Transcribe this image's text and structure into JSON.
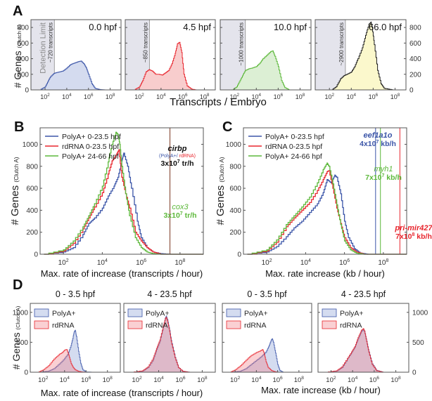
{
  "panel_letters": {
    "A": "A",
    "B": "B",
    "C": "C",
    "D": "D"
  },
  "colors": {
    "blue": "#3b55a8",
    "red": "#e8262e",
    "green": "#5cb83a",
    "black": "#1a1a1a",
    "brown": "#a07060",
    "detect_fill": "#e4e4ec",
    "yellow_fill": "#fbf8cc"
  },
  "chart_data": [
    {
      "id": "A",
      "type": "area",
      "subplots": [
        {
          "label": "0.0 hpf",
          "color": "blue",
          "fill": "#d4dbef",
          "detection_limit": 720,
          "detection_text": "~720 transcripts",
          "extra_text": "Detection Limit",
          "x_log10": [
            1.5,
            2,
            2.3,
            2.5,
            2.8,
            3,
            3.3,
            3.6,
            4,
            4.3,
            4.6,
            5,
            5.3,
            5.6,
            5.8,
            6,
            6.3,
            6.6,
            7,
            7.5
          ],
          "y": [
            0,
            40,
            120,
            170,
            210,
            220,
            230,
            240,
            280,
            320,
            340,
            360,
            370,
            330,
            280,
            200,
            80,
            20,
            5,
            0
          ]
        },
        {
          "label": "4.5 hpf",
          "color": "red",
          "fill": "#f8cdcd",
          "detection_limit": 850,
          "detection_text": "~850 transcripts",
          "x_log10": [
            1.5,
            2,
            2.3,
            2.6,
            2.9,
            3.2,
            3.5,
            3.8,
            4.1,
            4.4,
            4.7,
            5,
            5.3,
            5.5,
            5.7,
            5.9,
            6.1,
            6.4,
            6.8,
            7.2
          ],
          "y": [
            0,
            40,
            120,
            230,
            260,
            240,
            200,
            200,
            190,
            220,
            250,
            340,
            470,
            590,
            610,
            480,
            200,
            50,
            10,
            0
          ]
        },
        {
          "label": "10.0 hpf",
          "color": "green",
          "fill": "#dcefd4",
          "detection_limit": 1000,
          "detection_text": "~1000 transcripts",
          "x_log10": [
            1.8,
            2.2,
            2.5,
            2.8,
            3,
            3.3,
            3.6,
            4,
            4.3,
            4.6,
            5,
            5.3,
            5.5,
            5.7,
            6,
            6.3,
            6.6,
            7
          ],
          "y": [
            0,
            40,
            120,
            200,
            250,
            270,
            280,
            300,
            340,
            400,
            450,
            490,
            500,
            430,
            300,
            120,
            30,
            0
          ]
        },
        {
          "label": "66.0 hpf",
          "color": "black",
          "fill": "#fbf8cc",
          "detection_limit": 2900,
          "detection_text": "~2900 transcripts",
          "x_log10": [
            2.2,
            2.6,
            3,
            3.3,
            3.6,
            4,
            4.3,
            4.6,
            5,
            5.3,
            5.6,
            5.8,
            5.9,
            6.1,
            6.4,
            6.7,
            7,
            7.4,
            7.8
          ],
          "y": [
            0,
            40,
            140,
            180,
            200,
            230,
            300,
            400,
            540,
            700,
            840,
            870,
            800,
            580,
            250,
            80,
            20,
            10,
            0
          ]
        }
      ],
      "xlabel": "Transcripts / Embryo",
      "ylabel": "# Genes",
      "ylabel_sub": "(Clutch A)",
      "xticks": [
        "10^2",
        "10^4",
        "10^6",
        "10^8"
      ],
      "yticks": [
        "0",
        "200",
        "400",
        "600",
        "800"
      ],
      "ylim": [
        0,
        900
      ],
      "xlim_log10": [
        0.7,
        9
      ]
    },
    {
      "id": "B",
      "type": "line",
      "title": "",
      "xlabel": "Max. rate of increase (transcripts / hour)",
      "ylabel": "# Genes",
      "ylabel_sub": "(Clutch A)",
      "xticks": [
        "10^2",
        "10^4",
        "10^6",
        "10^8"
      ],
      "yticks": [
        "0",
        "200",
        "400",
        "600",
        "800",
        "1000"
      ],
      "ylim": [
        0,
        1150
      ],
      "xlim_log10": [
        0.8,
        9.2
      ],
      "legend": [
        "PolyA+ 0-23.5 hpf",
        "rdRNA  0-23.5 hpf",
        "PolyA+ 24-66 hpf"
      ],
      "series": [
        {
          "name": "PolyA+ 0-23.5 hpf",
          "color": "blue",
          "x_log10": [
            1,
            2,
            2.5,
            3,
            3.3,
            3.6,
            4,
            4.3,
            4.6,
            4.8,
            5,
            5.1,
            5.3,
            5.5,
            5.8,
            6,
            6.3,
            6.6,
            7,
            7.5
          ],
          "y": [
            0,
            20,
            60,
            180,
            280,
            330,
            420,
            530,
            620,
            700,
            850,
            920,
            800,
            600,
            300,
            150,
            60,
            20,
            5,
            0
          ]
        },
        {
          "name": "rdRNA 0-23.5 hpf",
          "color": "red",
          "x_log10": [
            1,
            2,
            2.5,
            3,
            3.3,
            3.6,
            4,
            4.3,
            4.5,
            4.7,
            4.85,
            5,
            5.2,
            5.4,
            5.7,
            6,
            6.3,
            6.6,
            7
          ],
          "y": [
            0,
            30,
            100,
            230,
            330,
            430,
            560,
            730,
            850,
            900,
            950,
            700,
            550,
            420,
            200,
            120,
            60,
            20,
            0
          ]
        },
        {
          "name": "PolyA+ 24-66 hpf",
          "color": "green",
          "x_log10": [
            1,
            2,
            2.5,
            3,
            3.3,
            3.6,
            4,
            4.3,
            4.5,
            4.7,
            4.8,
            4.9,
            5,
            5.2,
            5.4,
            5.7,
            6,
            6.3,
            6.6,
            7
          ],
          "y": [
            0,
            40,
            120,
            250,
            350,
            460,
            620,
            840,
            1000,
            1110,
            1090,
            1000,
            800,
            550,
            350,
            150,
            60,
            20,
            5,
            0
          ]
        }
      ],
      "annotations": [
        {
          "gene": "cirbp",
          "detail": "(PolyA+/ rdRNA)",
          "detail_a": "(PolyA+/",
          "detail_b": " rdRNA)",
          "rate": "3x10^7 tr/h",
          "rate_base": "3x10",
          "rate_exp": "7",
          "rate_unit": " tr/h",
          "x_log10": 7.48,
          "color": "black"
        },
        {
          "gene": "cox3",
          "rate": "3x10^7 tr/h",
          "rate_base": "3x10",
          "rate_exp": "7",
          "rate_unit": " tr/h",
          "x_log10": 7.48,
          "color": "green"
        }
      ]
    },
    {
      "id": "C",
      "type": "line",
      "xlabel": "Max. rate increase (kb / hour)",
      "ylabel": "# Genes",
      "ylabel_sub": "(Clutch A)",
      "xticks": [
        "10^2",
        "10^4",
        "10^6",
        "10^8"
      ],
      "yticks": [
        "0",
        "200",
        "400",
        "600",
        "800",
        "1000"
      ],
      "ylim": [
        0,
        1150
      ],
      "xlim_log10": [
        0.8,
        9.2
      ],
      "legend": [
        "PolyA+ 0-23.5 hpf",
        "rdRNA  0-23.5 hpf",
        "PolyA+ 24-66 hpf"
      ],
      "series": [
        {
          "name": "PolyA+ 0-23.5 hpf",
          "color": "blue",
          "x_log10": [
            1,
            2,
            2.5,
            3,
            3.4,
            3.8,
            4.2,
            4.6,
            4.9,
            5.1,
            5.3,
            5.5,
            5.6,
            5.8,
            6,
            6.2,
            6.5,
            6.8,
            7.2
          ],
          "y": [
            0,
            20,
            70,
            160,
            240,
            300,
            380,
            460,
            560,
            680,
            650,
            720,
            700,
            550,
            300,
            150,
            50,
            10,
            0
          ]
        },
        {
          "name": "rdRNA 0-23.5 hpf",
          "color": "red",
          "x_log10": [
            1,
            2,
            2.5,
            3,
            3.4,
            3.8,
            4.2,
            4.6,
            4.9,
            5.1,
            5.2,
            5.4,
            5.6,
            5.8,
            6,
            6.3,
            6.6,
            7
          ],
          "y": [
            0,
            30,
            110,
            250,
            330,
            400,
            470,
            580,
            680,
            750,
            760,
            600,
            420,
            280,
            150,
            60,
            20,
            0
          ]
        },
        {
          "name": "PolyA+ 24-66 hpf",
          "color": "green",
          "x_log10": [
            1,
            2,
            2.5,
            3,
            3.4,
            3.8,
            4.2,
            4.6,
            4.9,
            5.1,
            5.2,
            5.4,
            5.6,
            5.8,
            6,
            6.3,
            6.6,
            7
          ],
          "y": [
            0,
            40,
            130,
            270,
            350,
            430,
            520,
            650,
            770,
            830,
            800,
            640,
            450,
            270,
            120,
            40,
            10,
            0
          ]
        }
      ],
      "annotations": [
        {
          "gene": "eef1a1o",
          "rate": "4x10^7 kb/h",
          "rate_base": "4x10",
          "rate_exp": "7",
          "rate_unit": " kb/h",
          "x_log10": 7.6,
          "color": "blue"
        },
        {
          "gene": "myh1",
          "rate": "7x10^7 kb/h",
          "rate_base": "7x10",
          "rate_exp": "7",
          "rate_unit": " kb/h",
          "x_log10": 7.85,
          "color": "green"
        },
        {
          "gene": "pri-mir427",
          "rate": "7x10^8 kb/h",
          "rate_base": "7x10",
          "rate_exp": "8",
          "rate_unit": " kb/h",
          "x_log10": 8.85,
          "color": "red"
        }
      ]
    },
    {
      "id": "D",
      "type": "area",
      "xlabels": [
        "Max. rate of increase (transcripts / hour)",
        "Max. rate increase (kb / hour)"
      ],
      "ylabel": "# Genes",
      "ylabel_sub": "(Clutch A)",
      "xticks": [
        "10^2",
        "10^4",
        "10^6",
        "10^8"
      ],
      "yticks": [
        "0",
        "500",
        "1000"
      ],
      "ylim": [
        0,
        1150
      ],
      "xlim_log10": [
        0.8,
        9.2
      ],
      "legend": [
        "PolyA+",
        "rdRNA"
      ],
      "subplots": [
        {
          "title": "0 - 3.5 hpf",
          "series": [
            {
              "name": "PolyA+",
              "x_log10": [
                1.5,
                2.5,
                3,
                3.5,
                4,
                4.3,
                4.6,
                4.8,
                4.9,
                5,
                5.1,
                5.3,
                5.5,
                5.7,
                6,
                6.5
              ],
              "y": [
                0,
                20,
                60,
                140,
                230,
                300,
                450,
                600,
                680,
                700,
                600,
                350,
                150,
                40,
                5,
                0
              ]
            },
            {
              "name": "rdRNA",
              "x_log10": [
                1.5,
                2,
                2.5,
                3,
                3.5,
                3.8,
                4,
                4.2,
                4.4,
                4.6,
                4.8,
                5,
                5.3,
                5.6,
                6
              ],
              "y": [
                0,
                40,
                110,
                220,
                300,
                330,
                370,
                380,
                280,
                150,
                80,
                40,
                15,
                5,
                0
              ]
            }
          ]
        },
        {
          "title": "4 - 23.5 hpf",
          "series": [
            {
              "name": "PolyA+",
              "x_log10": [
                1.5,
                2.5,
                3,
                3.5,
                3.8,
                4.1,
                4.4,
                4.6,
                4.7,
                4.8,
                5,
                5.2,
                5.5,
                5.8,
                6.2,
                6.8
              ],
              "y": [
                0,
                20,
                80,
                220,
                380,
                520,
                750,
                900,
                940,
                880,
                700,
                480,
                250,
                80,
                15,
                0
              ]
            },
            {
              "name": "rdRNA",
              "x_log10": [
                1.5,
                2.5,
                3,
                3.5,
                3.8,
                4.1,
                4.4,
                4.6,
                4.7,
                4.8,
                5,
                5.2,
                5.5,
                5.8,
                6.2,
                6.8
              ],
              "y": [
                0,
                25,
                90,
                240,
                400,
                540,
                760,
                890,
                920,
                860,
                680,
                460,
                240,
                80,
                15,
                0
              ]
            }
          ]
        },
        {
          "title": "0 - 3.5 hpf",
          "series": [
            {
              "name": "PolyA+",
              "x_log10": [
                1.5,
                2.5,
                3,
                3.5,
                4,
                4.5,
                4.9,
                5.2,
                5.4,
                5.5,
                5.6,
                5.8,
                6,
                6.2,
                6.5
              ],
              "y": [
                0,
                20,
                60,
                130,
                200,
                270,
                340,
                450,
                540,
                560,
                500,
                320,
                130,
                30,
                0
              ]
            },
            {
              "name": "rdRNA",
              "x_log10": [
                1.5,
                2,
                2.5,
                3,
                3.5,
                4,
                4.4,
                4.6,
                4.7,
                4.9,
                5.1,
                5.4,
                5.7,
                6
              ],
              "y": [
                0,
                40,
                110,
                200,
                280,
                330,
                360,
                380,
                330,
                180,
                80,
                30,
                10,
                0
              ]
            }
          ]
        },
        {
          "title": "4 - 23.5 hpf",
          "series": [
            {
              "name": "PolyA+",
              "x_log10": [
                1.5,
                2.5,
                3,
                3.5,
                3.9,
                4.2,
                4.5,
                4.8,
                5,
                5.1,
                5.3,
                5.5,
                5.8,
                6.2,
                6.8
              ],
              "y": [
                0,
                20,
                80,
                220,
                330,
                420,
                560,
                680,
                710,
                680,
                520,
                340,
                140,
                30,
                0
              ]
            },
            {
              "name": "rdRNA",
              "x_log10": [
                1.5,
                2.5,
                3,
                3.5,
                3.9,
                4.2,
                4.5,
                4.8,
                5,
                5.1,
                5.3,
                5.5,
                5.8,
                6.2,
                6.8
              ],
              "y": [
                0,
                25,
                90,
                230,
                340,
                430,
                580,
                700,
                730,
                690,
                510,
                330,
                130,
                25,
                0
              ]
            }
          ]
        }
      ]
    }
  ]
}
